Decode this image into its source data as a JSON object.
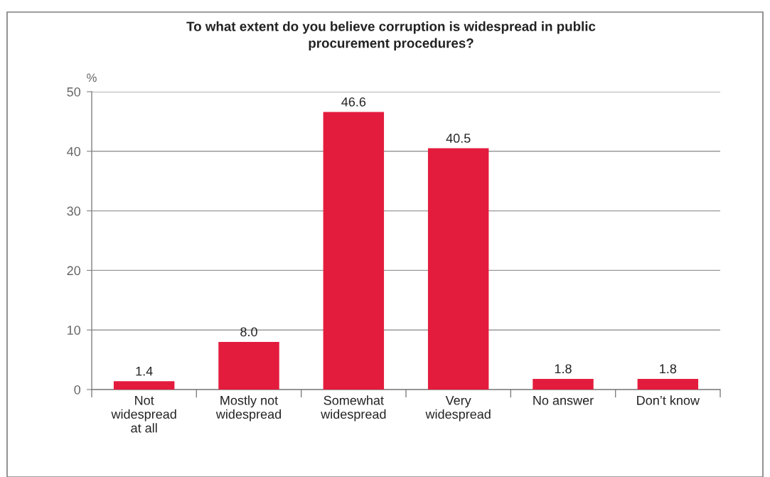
{
  "chart_data": {
    "type": "bar",
    "title": "To what extent do you believe corruption is widespread in public\nprocurement procedures?",
    "ylabel": "%",
    "categories": [
      "Not\nwidespread\nat all",
      "Mostly not\nwidespread",
      "Somewhat\nwidespread",
      "Very\nwidespread",
      "No answer",
      "Don’t know"
    ],
    "values": [
      1.4,
      8.0,
      46.6,
      40.5,
      1.8,
      1.8
    ],
    "value_labels": [
      "1.4",
      "8.0",
      "46.6",
      "40.5",
      "1.8",
      "1.8"
    ],
    "color": "#e31c3d",
    "ylim": [
      0,
      50
    ],
    "yticks": [
      0,
      10,
      20,
      30,
      40,
      50
    ],
    "grid": "y",
    "legend": false
  }
}
